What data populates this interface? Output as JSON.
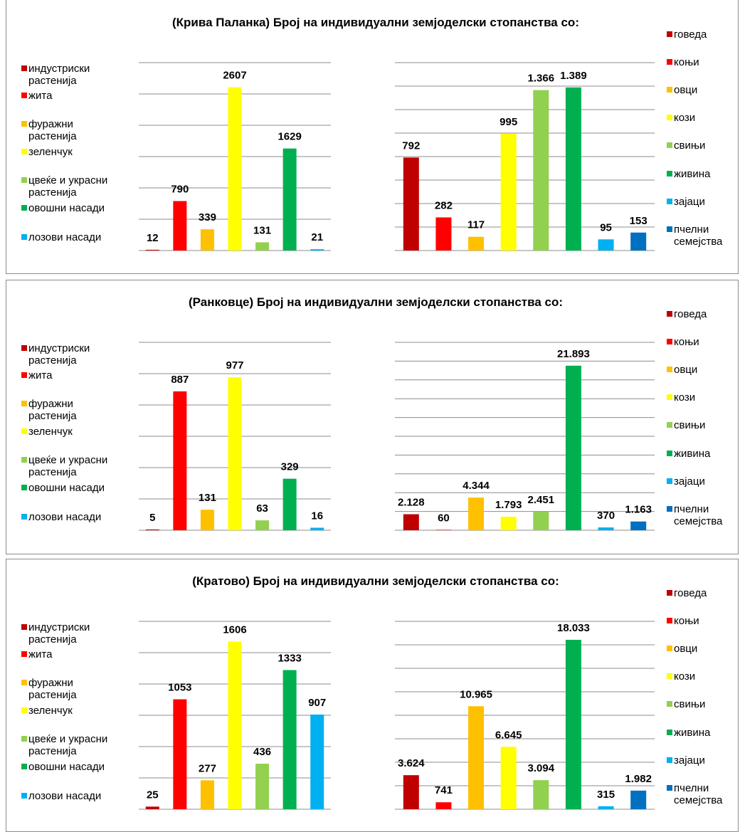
{
  "chart_data": [
    {
      "type": "bar",
      "title": "(Крива Паланка) Број на индивидуални земјоделски стопанства со:",
      "categories": [
        "индустриски растенија",
        "жита",
        "фуражни растенија",
        "зеленчук",
        "цвеќе и украсни растенија",
        "овошни насади",
        "лозови насади"
      ],
      "values": [
        12,
        790,
        339,
        2607,
        131,
        1629,
        21
      ],
      "colors": [
        "#c00000",
        "#ff0000",
        "#ffc000",
        "#ffff00",
        "#92d050",
        "#00b050",
        "#00b0f0"
      ],
      "ylim": [
        0,
        3000
      ],
      "yticks": [
        0,
        500,
        1000,
        1500,
        2000,
        2500,
        3000
      ],
      "tick_labels": false,
      "grid": true,
      "legend": "left"
    },
    {
      "type": "bar",
      "categories": [
        "говеда",
        "коњи",
        "овци",
        "кози",
        "свињи",
        "живина",
        "зајаци",
        "пчелни семејства"
      ],
      "values": [
        792,
        282,
        117,
        995,
        1366,
        1389,
        95,
        153
      ],
      "value_labels": [
        "792",
        "282",
        "117",
        "995",
        "1.366",
        "1.389",
        "95",
        "153"
      ],
      "colors": [
        "#c00000",
        "#ff0000",
        "#ffc000",
        "#ffff00",
        "#92d050",
        "#00b050",
        "#00b0f0",
        "#0070c0"
      ],
      "ylim": [
        0,
        1600
      ],
      "yticks": [
        0,
        200,
        400,
        600,
        800,
        1000,
        1200,
        1400,
        1600
      ],
      "tick_labels": false,
      "grid": true,
      "legend": "right"
    },
    {
      "type": "bar",
      "title": "(Ранковце) Број на индивидуални земјоделски стопанства со:",
      "categories": [
        "индустриски растенија",
        "жита",
        "фуражни растенија",
        "зеленчук",
        "цвеќе и украсни растенија",
        "овошни насади",
        "лозови насади"
      ],
      "values": [
        5,
        887,
        131,
        977,
        63,
        329,
        16
      ],
      "colors": [
        "#c00000",
        "#ff0000",
        "#ffc000",
        "#ffff00",
        "#92d050",
        "#00b050",
        "#00b0f0"
      ],
      "ylim": [
        0,
        1200
      ],
      "yticks": [
        0,
        200,
        400,
        600,
        800,
        1000,
        1200
      ],
      "tick_labels": false,
      "grid": true,
      "legend": "left"
    },
    {
      "type": "bar",
      "categories": [
        "говеда",
        "коњи",
        "овци",
        "кози",
        "свињи",
        "живина",
        "зајаци",
        "пчелни семејства"
      ],
      "values": [
        2128,
        60,
        4344,
        1793,
        2451,
        21893,
        370,
        1163
      ],
      "value_labels": [
        "2.128",
        "60",
        "4.344",
        "1.793",
        "2.451",
        "21.893",
        "370",
        "1.163"
      ],
      "colors": [
        "#c00000",
        "#ff0000",
        "#ffc000",
        "#ffff00",
        "#92d050",
        "#00b050",
        "#00b0f0",
        "#0070c0"
      ],
      "ylim": [
        0,
        25000
      ],
      "yticks": [
        0,
        2500,
        5000,
        7500,
        10000,
        12500,
        15000,
        17500,
        20000,
        22500,
        25000
      ],
      "tick_labels": false,
      "grid": true,
      "legend": "right"
    },
    {
      "type": "bar",
      "title": "(Кратово)  Број на индивидуални земјоделски стопанства со:",
      "categories": [
        "индустриски растенија",
        "жита",
        "фуражни растенија",
        "зеленчук",
        "цвеќе и украсни растенија",
        "овошни насади",
        "лозови насади"
      ],
      "values": [
        25,
        1053,
        277,
        1606,
        436,
        1333,
        907
      ],
      "colors": [
        "#c00000",
        "#ff0000",
        "#ffc000",
        "#ffff00",
        "#92d050",
        "#00b050",
        "#00b0f0"
      ],
      "ylim": [
        0,
        1800
      ],
      "yticks": [
        0,
        300,
        600,
        900,
        1200,
        1500,
        1800
      ],
      "tick_labels": false,
      "grid": true,
      "legend": "left"
    },
    {
      "type": "bar",
      "categories": [
        "говеда",
        "коњи",
        "овци",
        "кози",
        "свињи",
        "живина",
        "зајаци",
        "пчелни семејства"
      ],
      "values": [
        3624,
        741,
        10965,
        6645,
        3094,
        18033,
        315,
        1982
      ],
      "value_labels": [
        "3.624",
        "741",
        "10.965",
        "6.645",
        "3.094",
        "18.033",
        "315",
        "1.982"
      ],
      "colors": [
        "#c00000",
        "#ff0000",
        "#ffc000",
        "#ffff00",
        "#92d050",
        "#00b050",
        "#00b0f0",
        "#0070c0"
      ],
      "ylim": [
        0,
        20000
      ],
      "yticks": [
        0,
        2500,
        5000,
        7500,
        10000,
        12500,
        15000,
        17500,
        20000
      ],
      "tick_labels": false,
      "grid": true,
      "legend": "right"
    }
  ]
}
